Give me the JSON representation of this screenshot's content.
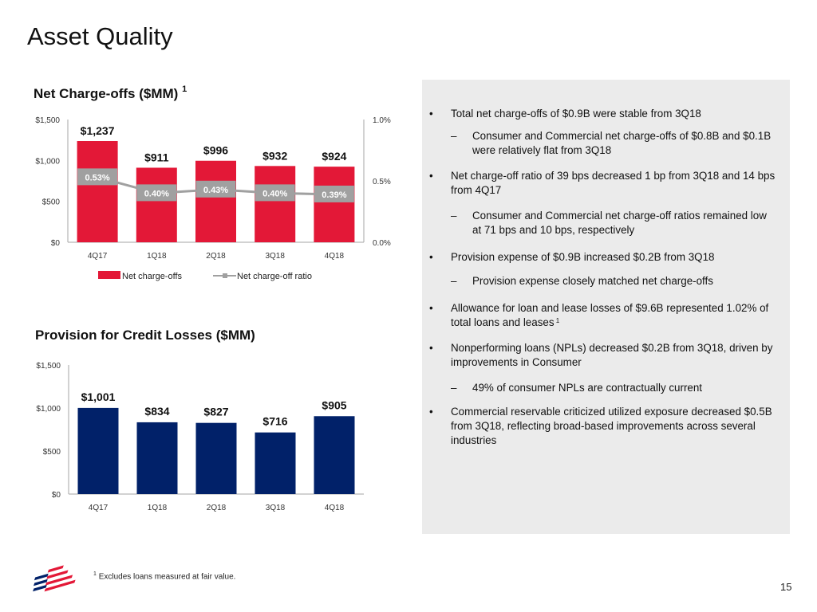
{
  "page": {
    "title": "Asset Quality",
    "page_number": "15",
    "footnote_marker": "1",
    "footnote": "Excludes loans measured at fair value."
  },
  "colors": {
    "net_charge_offs": "#e31837",
    "ratio_line": "#a0a0a0",
    "provision": "#012169",
    "panel_bg": "#ebebeb"
  },
  "chart_data": [
    {
      "type": "bar",
      "title": "Net Charge-offs ($MM)",
      "title_superscript": "1",
      "categories": [
        "4Q17",
        "1Q18",
        "2Q18",
        "3Q18",
        "4Q18"
      ],
      "series": [
        {
          "name": "Net charge-offs",
          "type": "bar",
          "axis": "left",
          "values": [
            1237,
            911,
            996,
            932,
            924
          ],
          "labels": [
            "$1,237",
            "$911",
            "$996",
            "$932",
            "$924"
          ]
        },
        {
          "name": "Net charge-off ratio",
          "type": "line",
          "axis": "right",
          "values": [
            0.53,
            0.4,
            0.43,
            0.4,
            0.39
          ],
          "labels": [
            "0.53%",
            "0.40%",
            "0.43%",
            "0.40%",
            "0.39%"
          ]
        }
      ],
      "ylim": [
        0,
        1500
      ],
      "yticks": [
        "$0",
        "$500",
        "$1,000",
        "$1,500"
      ],
      "ytick_values": [
        0,
        500,
        1000,
        1500
      ],
      "y2lim": [
        0,
        1.0
      ],
      "y2ticks": [
        "0.0%",
        "0.5%",
        "1.0%"
      ],
      "y2tick_values": [
        0,
        0.5,
        1.0
      ],
      "legend": [
        "Net charge-offs",
        "Net charge-off ratio"
      ],
      "legend_position": "bottom",
      "grid": false
    },
    {
      "type": "bar",
      "title": "Provision for Credit Losses ($MM)",
      "categories": [
        "4Q17",
        "1Q18",
        "2Q18",
        "3Q18",
        "4Q18"
      ],
      "series": [
        {
          "name": "Provision for credit losses",
          "values": [
            1001,
            834,
            827,
            716,
            905
          ],
          "labels": [
            "$1,001",
            "$834",
            "$827",
            "$716",
            "$905"
          ]
        }
      ],
      "ylim": [
        0,
        1500
      ],
      "yticks": [
        "$0",
        "$500",
        "$1,000",
        "$1,500"
      ],
      "ytick_values": [
        0,
        500,
        1000,
        1500
      ],
      "grid": false
    }
  ],
  "bullets": [
    {
      "level": 1,
      "text": "Total net charge-offs of $0.9B were stable from 3Q18"
    },
    {
      "level": 2,
      "text": "Consumer and Commercial net charge-offs of $0.8B and $0.1B were relatively flat from 3Q18"
    },
    {
      "level": 1,
      "text": "Net charge-off ratio of 39 bps decreased 1 bp from 3Q18 and 14 bps from 4Q17"
    },
    {
      "level": 2,
      "text": "Consumer and Commercial net charge-off ratios remained low at 71 bps and 10 bps, respectively"
    },
    {
      "level": 1,
      "text": "Provision expense of $0.9B increased $0.2B from 3Q18"
    },
    {
      "level": 2,
      "text": "Provision expense closely matched net charge-offs"
    },
    {
      "level": 1,
      "text": "Allowance for loan and lease losses of $9.6B represented 1.02% of total loans and leases",
      "superscript": "1"
    },
    {
      "level": 1,
      "text": "Nonperforming loans (NPLs) decreased $0.2B from 3Q18, driven by improvements in Consumer"
    },
    {
      "level": 2,
      "text": "49% of consumer NPLs are contractually current"
    },
    {
      "level": 1,
      "text": "Commercial reservable criticized utilized exposure decreased $0.5B from 3Q18, reflecting broad-based improvements across several industries"
    }
  ],
  "markers": {
    "level1": "•",
    "level2": "–"
  }
}
